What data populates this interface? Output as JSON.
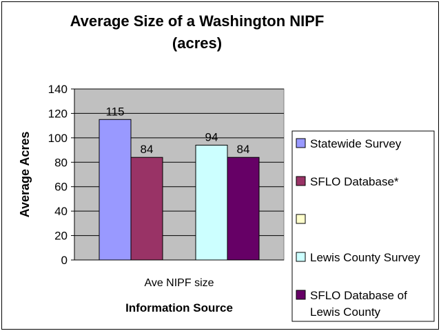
{
  "chart_data": {
    "type": "bar",
    "title_line1": "Average Size of a Washington NIPF",
    "title_line2": "(acres)",
    "ylabel": "Average Acres",
    "xlabel": "Information Source",
    "categories": [
      "Ave NIPF size"
    ],
    "ylim": [
      0,
      140
    ],
    "yticks": [
      0,
      20,
      40,
      60,
      80,
      100,
      120,
      140
    ],
    "grid": true,
    "legend_position": "right",
    "series": [
      {
        "name": "Statewide Survey",
        "values": [
          115
        ],
        "color": "#9999ff",
        "value_label": "115"
      },
      {
        "name": "SFLO Database*",
        "values": [
          84
        ],
        "color": "#993366",
        "value_label": "84"
      },
      {
        "name": "",
        "values": [
          null
        ],
        "color": "#ffffcc",
        "value_label": ""
      },
      {
        "name": "Lewis County Survey",
        "values": [
          94
        ],
        "color": "#ccffff",
        "value_label": "94"
      },
      {
        "name": "SFLO Database of Lewis County",
        "values": [
          84
        ],
        "color": "#660066",
        "value_label": "84"
      }
    ],
    "plot_background": "#c0c0c0"
  }
}
